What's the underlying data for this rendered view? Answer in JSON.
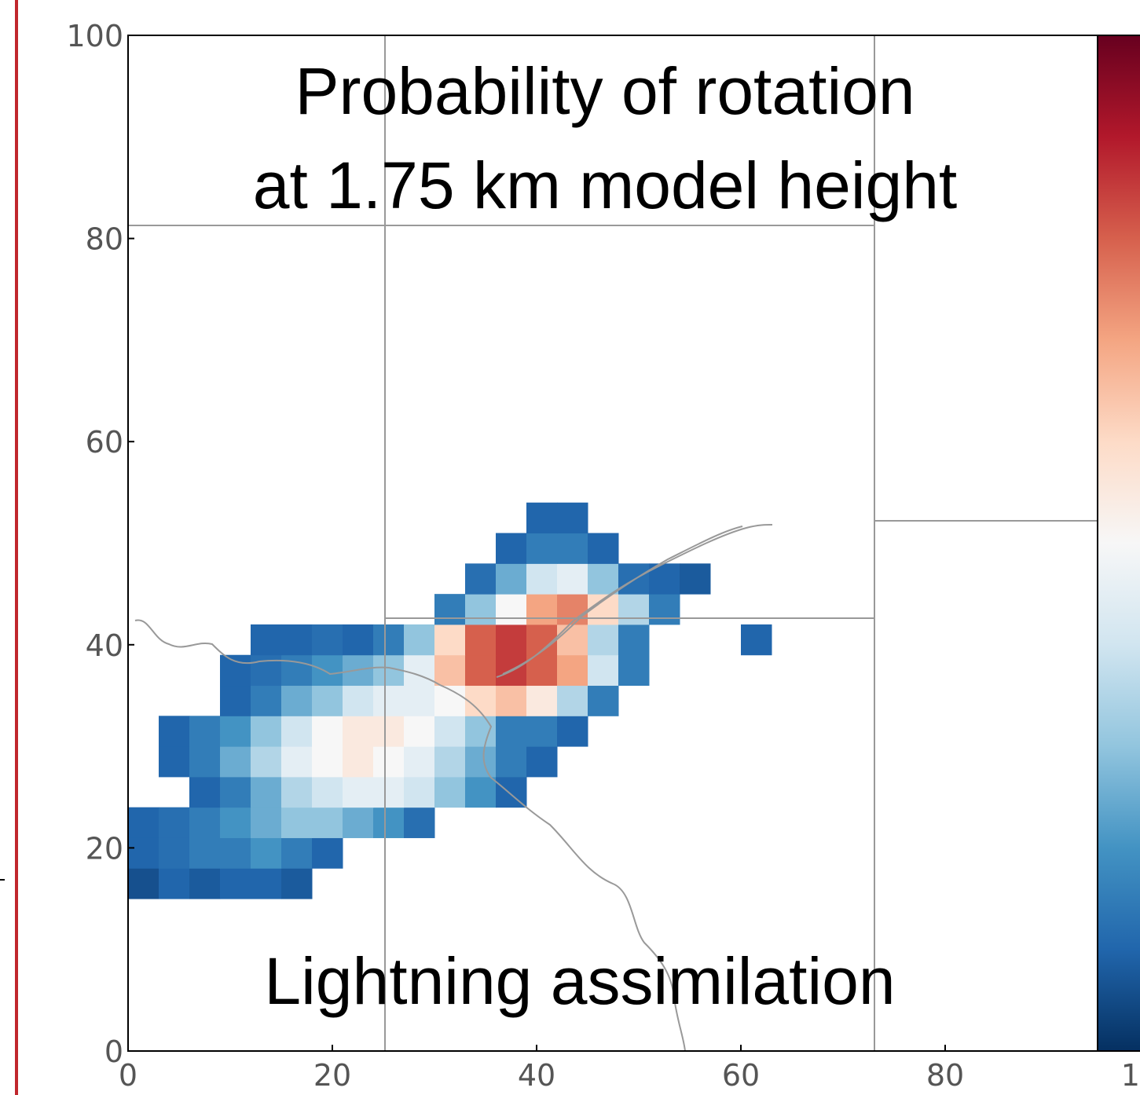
{
  "chart_data": {
    "type": "heatmap",
    "title": [
      "Probability of rotation",
      "at 1.75 km model height"
    ],
    "annotation": "Lightning assimilation",
    "xlim": [
      0,
      100
    ],
    "ylim": [
      0,
      100
    ],
    "xticks": [
      0,
      20,
      40,
      60,
      80,
      100
    ],
    "yticks": [
      0,
      20,
      40,
      60,
      80,
      100
    ],
    "xbins": [
      0,
      3,
      6,
      9,
      12,
      15,
      18,
      21,
      24,
      27,
      30,
      33,
      36,
      39,
      42,
      45,
      48,
      51,
      54,
      57,
      60,
      63,
      66
    ],
    "ybins": [
      15,
      18,
      21,
      24,
      27,
      30,
      33,
      36,
      39,
      42,
      45,
      48,
      51,
      54
    ],
    "zlim": [
      0,
      1
    ],
    "colormap": [
      "#053061",
      "#2166ac",
      "#4393c3",
      "#92c5de",
      "#d1e5f0",
      "#f7f7f7",
      "#fddbc7",
      "#f4a582",
      "#d6604d",
      "#b2182b",
      "#67001f"
    ],
    "z": [
      [
        0.06,
        0.1,
        0.08,
        0.1,
        0.1,
        0.08,
        null,
        null,
        null,
        null,
        null,
        null,
        null,
        null,
        null,
        null,
        null,
        null,
        null,
        null,
        null,
        null
      ],
      [
        0.1,
        0.12,
        0.15,
        0.15,
        0.2,
        0.15,
        0.1,
        null,
        null,
        null,
        null,
        null,
        null,
        null,
        null,
        null,
        null,
        null,
        null,
        null,
        null,
        null
      ],
      [
        0.1,
        0.12,
        0.15,
        0.2,
        0.25,
        0.3,
        0.3,
        0.25,
        0.2,
        0.12,
        null,
        null,
        null,
        null,
        null,
        null,
        null,
        null,
        null,
        null,
        null,
        null
      ],
      [
        null,
        null,
        0.1,
        0.15,
        0.25,
        0.35,
        0.4,
        0.45,
        0.45,
        0.4,
        0.3,
        0.2,
        0.1,
        null,
        null,
        null,
        null,
        null,
        null,
        null,
        null,
        null
      ],
      [
        null,
        0.1,
        0.15,
        0.25,
        0.35,
        0.45,
        0.5,
        0.55,
        0.5,
        0.45,
        0.35,
        0.25,
        0.15,
        0.1,
        null,
        null,
        null,
        null,
        null,
        null,
        null,
        null
      ],
      [
        null,
        0.1,
        0.15,
        0.2,
        0.3,
        0.4,
        0.5,
        0.55,
        0.55,
        0.5,
        0.4,
        0.3,
        0.15,
        0.15,
        0.1,
        null,
        null,
        null,
        null,
        null,
        null,
        null
      ],
      [
        null,
        null,
        null,
        0.1,
        0.15,
        0.25,
        0.3,
        0.4,
        0.45,
        0.45,
        0.5,
        0.6,
        0.65,
        0.55,
        0.35,
        0.15,
        null,
        null,
        null,
        null,
        null,
        null
      ],
      [
        null,
        null,
        null,
        0.1,
        0.12,
        0.15,
        0.2,
        0.25,
        0.3,
        0.45,
        0.65,
        0.8,
        0.85,
        0.8,
        0.7,
        0.4,
        0.15,
        null,
        null,
        null,
        null,
        null
      ],
      [
        null,
        null,
        null,
        null,
        0.1,
        0.1,
        0.12,
        0.1,
        0.15,
        0.3,
        0.6,
        0.8,
        0.85,
        0.8,
        0.65,
        0.35,
        0.15,
        null,
        null,
        null,
        0.1,
        null
      ],
      [
        null,
        null,
        null,
        null,
        null,
        null,
        null,
        null,
        null,
        null,
        0.15,
        0.3,
        0.5,
        0.7,
        0.75,
        0.6,
        0.35,
        0.15,
        null,
        null,
        null,
        null
      ],
      [
        null,
        null,
        null,
        null,
        null,
        null,
        null,
        null,
        null,
        null,
        null,
        0.12,
        0.25,
        0.4,
        0.45,
        0.3,
        0.12,
        0.1,
        0.08,
        null,
        null,
        null
      ],
      [
        null,
        null,
        null,
        null,
        null,
        null,
        null,
        null,
        null,
        null,
        null,
        null,
        0.1,
        0.15,
        0.15,
        0.1,
        null,
        null,
        null,
        null,
        null,
        null
      ],
      [
        null,
        null,
        null,
        null,
        null,
        null,
        null,
        null,
        null,
        null,
        null,
        null,
        null,
        0.1,
        0.1,
        null,
        null,
        null,
        null,
        null,
        null,
        null
      ]
    ]
  }
}
